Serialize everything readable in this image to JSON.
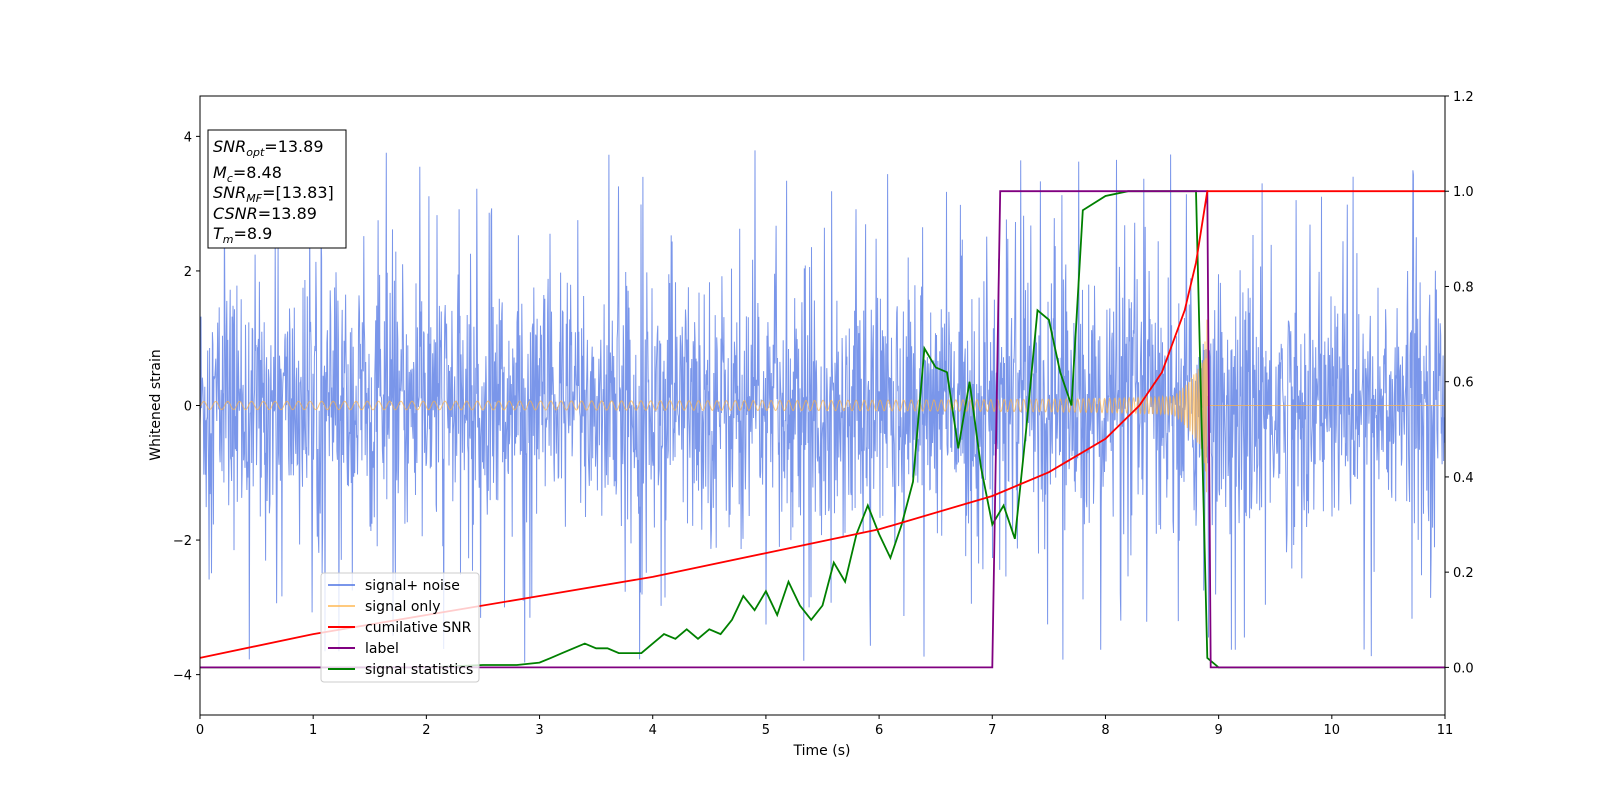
{
  "chart_data": {
    "type": "line",
    "xlabel": "Time (s)",
    "ylabel_left": "Whitened strain",
    "ylabel_right": "",
    "xlim": [
      0,
      11
    ],
    "ylim_left": [
      -4.6,
      4.6
    ],
    "ylim_right": [
      -0.1,
      1.2
    ],
    "x_ticks": [
      "0",
      "1",
      "2",
      "3",
      "4",
      "5",
      "6",
      "7",
      "8",
      "9",
      "10",
      "11"
    ],
    "y_ticks_left": [
      "−4",
      "−2",
      "0",
      "2",
      "4"
    ],
    "y_ticks_right": [
      "0.0",
      "0.2",
      "0.4",
      "0.6",
      "0.8",
      "1.0",
      "1.2"
    ],
    "grid": false,
    "legend_position": "lower-left",
    "annotation_box": {
      "snr_opt": {
        "main": "SNR",
        "sub": "opt",
        "value": "=13.89"
      },
      "mc": {
        "main": "M",
        "sub": "c",
        "value": "=8.48"
      },
      "snr_mf": {
        "main": "SNR",
        "sub": "MF",
        "value": "=[13.83]"
      },
      "csnr": {
        "main": "CSNR",
        "sub": "",
        "value": "=13.89"
      },
      "tm": {
        "main": "T",
        "sub": "m",
        "value": "=8.9"
      }
    },
    "series": [
      {
        "name": "signal+ noise",
        "axis": "left",
        "color": "#4169e1",
        "description_values": {
          "band_min": -2.5,
          "band_max": 2.5,
          "spike_max": 4.15,
          "spike_min": -4.15
        }
      },
      {
        "name": "signal only",
        "axis": "left",
        "color": "#ffb347",
        "description_values": {
          "start_amplitude": 0.06,
          "amplitude_at_8_9": 1.2,
          "merger_time": 8.9
        }
      },
      {
        "name": "cumilative SNR",
        "axis": "right",
        "color": "#ff0000",
        "x": [
          0,
          1,
          2,
          3,
          4,
          5,
          6,
          7,
          7.5,
          8,
          8.3,
          8.5,
          8.7,
          8.8,
          8.9,
          11
        ],
        "y": [
          0.02,
          0.07,
          0.11,
          0.15,
          0.19,
          0.24,
          0.29,
          0.36,
          0.41,
          0.48,
          0.55,
          0.62,
          0.75,
          0.85,
          1.0,
          1.0
        ]
      },
      {
        "name": "label",
        "axis": "right",
        "color": "#800080",
        "x": [
          0,
          7.0,
          7.07,
          8.9,
          8.93,
          11
        ],
        "y": [
          0,
          0,
          1,
          1,
          0,
          0
        ]
      },
      {
        "name": "signal statistics",
        "axis": "right",
        "color": "#008000",
        "x": [
          0,
          0.5,
          1,
          1.5,
          2,
          2.5,
          2.8,
          3,
          3.1,
          3.2,
          3.3,
          3.4,
          3.5,
          3.6,
          3.7,
          3.8,
          3.9,
          4,
          4.1,
          4.2,
          4.3,
          4.4,
          4.5,
          4.6,
          4.7,
          4.8,
          4.9,
          5,
          5.1,
          5.2,
          5.3,
          5.4,
          5.5,
          5.6,
          5.7,
          5.8,
          5.9,
          6,
          6.1,
          6.2,
          6.3,
          6.4,
          6.5,
          6.6,
          6.7,
          6.8,
          6.9,
          7.0,
          7.1,
          7.2,
          7.3,
          7.4,
          7.5,
          7.6,
          7.7,
          7.8,
          8.0,
          8.2,
          8.5,
          8.8,
          8.9,
          9.0,
          11
        ],
        "y": [
          0.0,
          0.0,
          0.0,
          0.0,
          0.0,
          0.005,
          0.005,
          0.01,
          0.02,
          0.03,
          0.04,
          0.05,
          0.04,
          0.04,
          0.03,
          0.03,
          0.03,
          0.05,
          0.07,
          0.06,
          0.08,
          0.06,
          0.08,
          0.07,
          0.1,
          0.15,
          0.12,
          0.16,
          0.11,
          0.18,
          0.13,
          0.1,
          0.13,
          0.22,
          0.18,
          0.28,
          0.34,
          0.28,
          0.23,
          0.3,
          0.39,
          0.67,
          0.63,
          0.62,
          0.46,
          0.6,
          0.42,
          0.3,
          0.34,
          0.27,
          0.5,
          0.75,
          0.73,
          0.62,
          0.55,
          0.96,
          0.99,
          1.0,
          1.0,
          1.0,
          0.02,
          0.0,
          0.0
        ]
      }
    ]
  }
}
